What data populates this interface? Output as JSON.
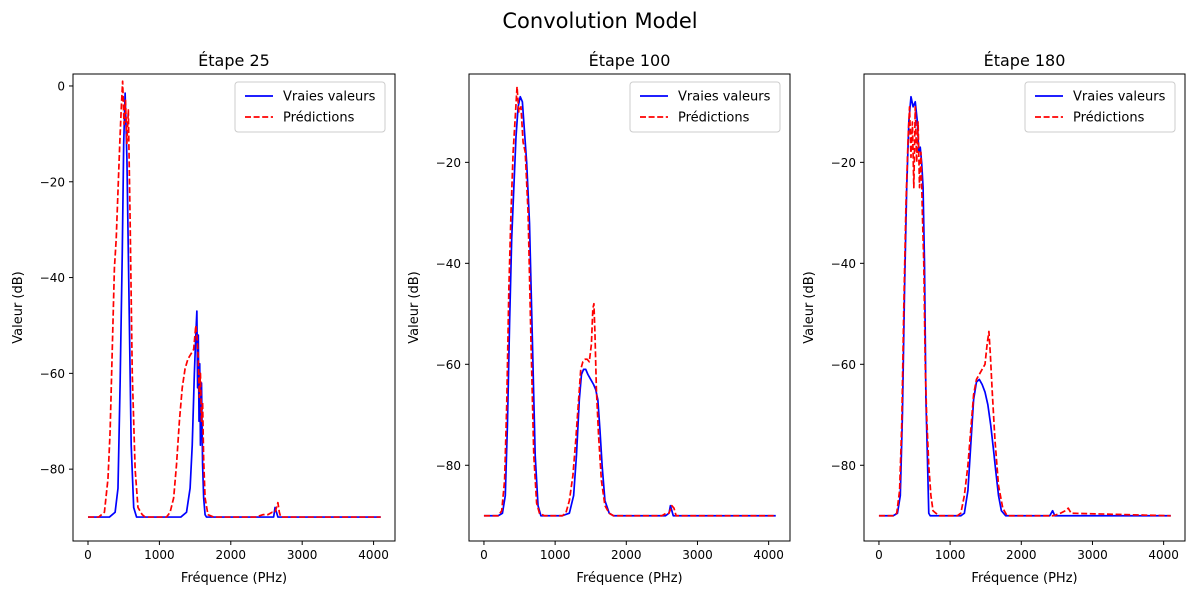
{
  "figure": {
    "title": "Convolution Model"
  },
  "chart_data": [
    {
      "type": "line",
      "title": "Étape 25",
      "xlabel": "Fréquence (PHz)",
      "ylabel": "Valeur (dB)",
      "xlim": [
        -210,
        4300
      ],
      "ylim": [
        -95,
        2.5
      ],
      "xticks": [
        0,
        1000,
        2000,
        3000,
        4000
      ],
      "yticks": [
        0,
        -20,
        -40,
        -60,
        -80
      ],
      "legend": "top-right",
      "grid": false,
      "series": [
        {
          "name": "Vraies valeurs",
          "color": "#0000ff",
          "style": "solid",
          "x": [
            0,
            20,
            300,
            380,
            420,
            450,
            480,
            500,
            520,
            545,
            575,
            605,
            640,
            680,
            700,
            1300,
            1380,
            1430,
            1460,
            1490,
            1510,
            1525,
            1535,
            1545,
            1555,
            1565,
            1575,
            1590,
            1605,
            1620,
            1640,
            1660,
            1700,
            2600,
            2620,
            2640,
            2660,
            4100
          ],
          "y": [
            -90,
            -90,
            -90,
            -89,
            -84,
            -62,
            -35,
            -12,
            -1.5,
            -15,
            -45,
            -75,
            -88,
            -90,
            -90,
            -90,
            -89,
            -84,
            -75,
            -60,
            -52,
            -47,
            -63,
            -52,
            -70,
            -58,
            -75,
            -62,
            -79,
            -86,
            -89.5,
            -90,
            -90,
            -90,
            -88,
            -89,
            -90,
            -90
          ]
        },
        {
          "name": "Prédictions",
          "color": "#ff0000",
          "style": "dashed",
          "x": [
            0,
            20,
            150,
            230,
            280,
            310,
            340,
            370,
            395,
            420,
            445,
            465,
            485,
            505,
            525,
            545,
            565,
            590,
            620,
            660,
            700,
            760,
            800,
            1100,
            1150,
            1200,
            1240,
            1280,
            1320,
            1360,
            1400,
            1440,
            1480,
            1510,
            1530,
            1545,
            1560,
            1575,
            1590,
            1605,
            1620,
            1640,
            1680,
            1760,
            2350,
            2450,
            2520,
            2580,
            2620,
            2660,
            2680,
            2700,
            2750,
            4100
          ],
          "y": [
            -90,
            -90,
            -90,
            -89,
            -82,
            -72,
            -55,
            -38,
            -32,
            -22,
            -12,
            -5,
            1,
            -8,
            -3,
            -12,
            -5,
            -28,
            -60,
            -80,
            -88,
            -89.5,
            -90,
            -90,
            -89,
            -86,
            -79,
            -70,
            -63,
            -59,
            -57,
            -56,
            -55,
            -50,
            -53,
            -57,
            -65,
            -60,
            -70,
            -66,
            -78,
            -86,
            -89.5,
            -90,
            -90,
            -89.5,
            -89.5,
            -89,
            -89,
            -87,
            -89,
            -90,
            -90,
            -90
          ]
        }
      ]
    },
    {
      "type": "line",
      "title": "Étape 100",
      "xlabel": "Fréquence (PHz)",
      "ylabel": "Valeur (dB)",
      "xlim": [
        -210,
        4300
      ],
      "ylim": [
        -95,
        -2.5
      ],
      "xticks": [
        0,
        1000,
        2000,
        3000,
        4000
      ],
      "yticks": [
        -20,
        -40,
        -60,
        -80
      ],
      "legend": "top-right",
      "grid": false,
      "series": [
        {
          "name": "Vraies valeurs",
          "color": "#0000ff",
          "style": "solid",
          "x": [
            0,
            20,
            200,
            260,
            300,
            330,
            360,
            390,
            420,
            450,
            480,
            510,
            540,
            570,
            600,
            640,
            680,
            720,
            760,
            800,
            1100,
            1200,
            1260,
            1300,
            1340,
            1370,
            1400,
            1430,
            1460,
            1500,
            1540,
            1570,
            1600,
            1630,
            1660,
            1700,
            1760,
            1820,
            2550,
            2600,
            2620,
            2660,
            4100
          ],
          "y": [
            -90,
            -90,
            -90,
            -89.5,
            -86,
            -72,
            -52,
            -35,
            -25,
            -15,
            -9,
            -7,
            -8,
            -14,
            -20,
            -32,
            -55,
            -78,
            -88,
            -90,
            -90,
            -89.5,
            -86,
            -78,
            -67,
            -62,
            -61,
            -61,
            -62,
            -63,
            -64,
            -65,
            -67,
            -73,
            -80,
            -87,
            -89.5,
            -90,
            -90,
            -89.5,
            -88,
            -90,
            -90
          ]
        },
        {
          "name": "Prédictions",
          "color": "#ff0000",
          "style": "dashed",
          "x": [
            0,
            20,
            200,
            250,
            290,
            320,
            350,
            380,
            410,
            440,
            465,
            490,
            520,
            550,
            580,
            620,
            660,
            700,
            740,
            780,
            850,
            1100,
            1150,
            1200,
            1250,
            1290,
            1330,
            1360,
            1390,
            1420,
            1450,
            1480,
            1510,
            1530,
            1545,
            1560,
            1580,
            1610,
            1650,
            1700,
            1760,
            1820,
            2500,
            2560,
            2600,
            2640,
            2670,
            2700,
            4100
          ],
          "y": [
            -90,
            -90,
            -90,
            -89,
            -83,
            -68,
            -45,
            -30,
            -18,
            -11,
            -5,
            -10,
            -9,
            -16,
            -18,
            -30,
            -55,
            -78,
            -87.5,
            -89.5,
            -90,
            -90,
            -89.5,
            -87,
            -82,
            -75,
            -67,
            -61,
            -59.5,
            -59,
            -59,
            -59.5,
            -56,
            -49,
            -48,
            -54,
            -65,
            -74,
            -83,
            -88,
            -89.5,
            -90,
            -90,
            -89.5,
            -89.5,
            -88,
            -88.5,
            -90,
            -90
          ]
        }
      ]
    },
    {
      "type": "line",
      "title": "Étape 180",
      "xlabel": "Fréquence (PHz)",
      "ylabel": "Valeur (dB)",
      "xlim": [
        -210,
        4300
      ],
      "ylim": [
        -95,
        -2.5
      ],
      "xticks": [
        0,
        1000,
        2000,
        3000,
        4000
      ],
      "yticks": [
        -20,
        -40,
        -60,
        -80
      ],
      "legend": "top-right",
      "grid": false,
      "series": [
        {
          "name": "Vraies valeurs",
          "color": "#0000ff",
          "style": "solid",
          "x": [
            0,
            20,
            200,
            260,
            300,
            330,
            360,
            390,
            420,
            450,
            480,
            510,
            540,
            560,
            580,
            600,
            620,
            640,
            660,
            680,
            700,
            720,
            760,
            1000,
            1150,
            1200,
            1250,
            1290,
            1330,
            1370,
            1410,
            1450,
            1490,
            1530,
            1570,
            1610,
            1640,
            1680,
            1720,
            1780,
            1850,
            2400,
            2440,
            2470,
            2500,
            4100
          ],
          "y": [
            -90,
            -90,
            -90,
            -89.5,
            -86,
            -70,
            -45,
            -25,
            -12,
            -7,
            -9,
            -8,
            -12,
            -18,
            -17,
            -20,
            -25,
            -40,
            -67,
            -78,
            -89.5,
            -90,
            -90,
            -90,
            -90,
            -89.5,
            -85,
            -76,
            -67,
            -63.5,
            -63,
            -64,
            -65.5,
            -68,
            -72,
            -77,
            -81,
            -86,
            -89,
            -90,
            -90,
            -90,
            -89,
            -90,
            -90,
            -90
          ]
        },
        {
          "name": "Prédictions",
          "color": "#ff0000",
          "style": "dashed",
          "x": [
            0,
            20,
            200,
            250,
            290,
            320,
            350,
            380,
            410,
            430,
            450,
            470,
            490,
            510,
            530,
            550,
            570,
            590,
            610,
            630,
            650,
            670,
            700,
            730,
            760,
            800,
            850,
            1100,
            1150,
            1200,
            1250,
            1290,
            1330,
            1370,
            1410,
            1450,
            1490,
            1520,
            1545,
            1565,
            1590,
            1630,
            1680,
            1740,
            1800,
            2450,
            2550,
            2620,
            2660,
            2700,
            4100
          ],
          "y": [
            -90,
            -90,
            -90,
            -89.5,
            -85,
            -72,
            -48,
            -28,
            -15,
            -9,
            -19,
            -12,
            -25,
            -9,
            -20,
            -12,
            -25,
            -18,
            -30,
            -40,
            -60,
            -70,
            -80,
            -86,
            -89,
            -89.5,
            -90,
            -90,
            -89.5,
            -86,
            -80,
            -73,
            -66,
            -63,
            -62,
            -61,
            -60,
            -56,
            -53.5,
            -58,
            -65,
            -75,
            -84,
            -88.5,
            -90,
            -90,
            -89.5,
            -89,
            -88.5,
            -89.5,
            -90
          ]
        }
      ]
    }
  ]
}
